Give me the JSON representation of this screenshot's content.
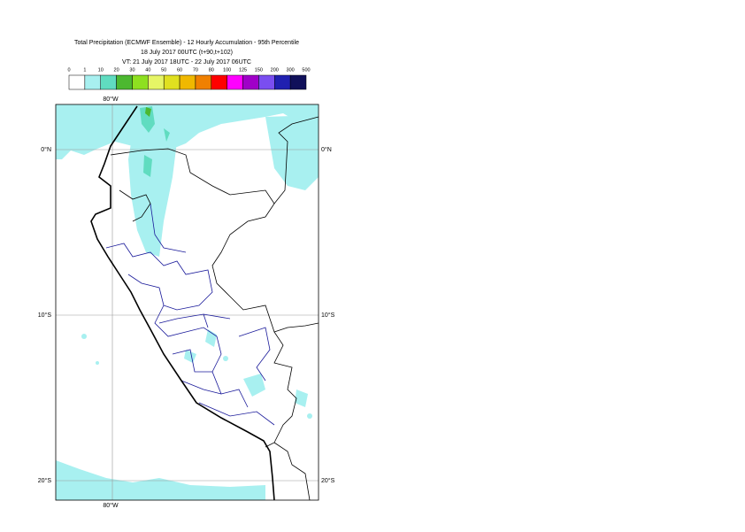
{
  "header": {
    "lines": [
      "Total Precipitation (ECMWF Ensemble) - 12 Hourly Accumulation - 95th Percentile",
      "18 July 2017 00UTC (t+90,t+102)",
      "VT: 21 July 2017 18UTC - 22 July 2017 06UTC"
    ]
  },
  "legend": {
    "labels": [
      0,
      1,
      10,
      20,
      30,
      40,
      50,
      60,
      70,
      80,
      100,
      125,
      150,
      200,
      300,
      500
    ],
    "colors": [
      "#ffffff",
      "#a8f0f0",
      "#60dcc0",
      "#4cb830",
      "#8ee020",
      "#e6f566",
      "#e0e020",
      "#f0b800",
      "#f08000",
      "#ff0000",
      "#ff00ff",
      "#a000c8",
      "#7a4ef0",
      "#2020b0",
      "#10105a"
    ]
  },
  "map": {
    "lon_labels": [
      "80°W",
      "80°W"
    ],
    "lat_labels_left": [
      "0°N",
      "10°S",
      "20°S"
    ],
    "lat_labels_right": [
      "0°N",
      "10°S",
      "20°S"
    ]
  }
}
